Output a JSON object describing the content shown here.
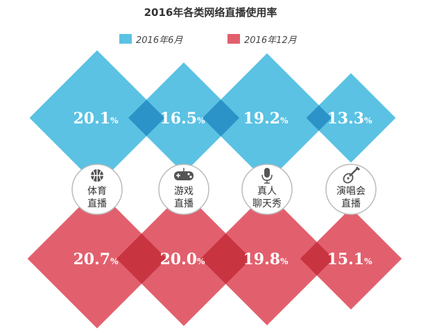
{
  "title": "2016年各类网络直播使用率",
  "legend": [
    {
      "label": "2016年6月",
      "color": "#5bc2e3"
    },
    {
      "label": "2016年12月",
      "color": "#e2606e"
    }
  ],
  "colors": {
    "overlap_top": "#2c93c8",
    "overlap_bottom": "#c83440",
    "icon": "#555555",
    "circle_border": "#bbbbbb"
  },
  "chart_data": {
    "type": "bar",
    "title": "2016年各类网络直播使用率",
    "unit": "%",
    "categories": [
      {
        "line1": "体育",
        "line2": "直播",
        "icon": "basketball-icon"
      },
      {
        "line1": "游戏",
        "line2": "直播",
        "icon": "gamepad-icon"
      },
      {
        "line1": "真人",
        "line2": "聊天秀",
        "icon": "microphone-icon"
      },
      {
        "line1": "演唱会",
        "line2": "直播",
        "icon": "guitar-icon"
      }
    ],
    "series": [
      {
        "name": "2016年6月",
        "values": [
          20.1,
          16.5,
          19.2,
          13.3
        ],
        "labels": [
          "20.1",
          "16.5",
          "19.2",
          "13.3"
        ]
      },
      {
        "name": "2016年12月",
        "values": [
          20.7,
          20.0,
          19.8,
          15.1
        ],
        "labels": [
          "20.7",
          "20.0",
          "19.8",
          "15.1"
        ]
      }
    ]
  }
}
